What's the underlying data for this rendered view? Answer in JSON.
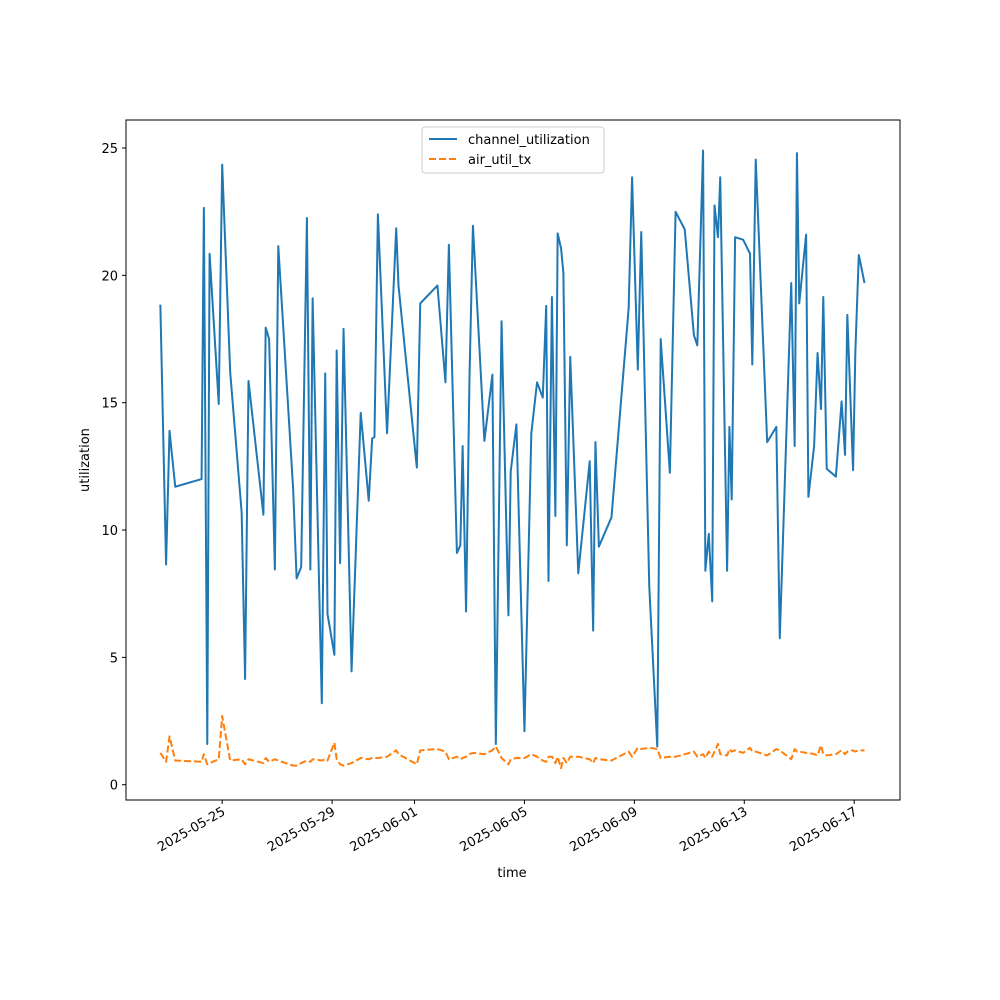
{
  "chart_data": {
    "type": "line",
    "xlabel": "time",
    "ylabel": "utilization",
    "x": [
      "2025-05-22T18:00",
      "2025-05-22T23:00",
      "2025-05-23T02:00",
      "2025-05-23T07:00",
      "2025-05-24T06:00",
      "2025-05-24T08:00",
      "2025-05-24T11:00",
      "2025-05-24T13:00",
      "2025-05-24T21:00",
      "2025-05-25T00:00",
      "2025-05-25T07:00",
      "2025-05-25T17:00",
      "2025-05-25T20:00",
      "2025-05-25T23:00",
      "2025-05-26T12:00",
      "2025-05-26T14:00",
      "2025-05-26T17:00",
      "2025-05-26T22:00",
      "2025-05-27T01:00",
      "2025-05-27T14:00",
      "2025-05-27T17:00",
      "2025-05-27T21:00",
      "2025-05-28T02:00",
      "2025-05-28T05:00",
      "2025-05-28T07:00",
      "2025-05-28T15:00",
      "2025-05-28T18:00",
      "2025-05-28T20:00",
      "2025-05-29T02:00",
      "2025-05-29T04:00",
      "2025-05-29T07:00",
      "2025-05-29T10:00",
      "2025-05-29T17:00",
      "2025-05-30T01:00",
      "2025-05-30T08:00",
      "2025-05-30T11:00",
      "2025-05-30T13:00",
      "2025-05-30T16:00",
      "2025-05-31T00:00",
      "2025-05-31T08:00",
      "2025-05-31T10:00",
      "2025-06-01T02:00",
      "2025-06-01T05:00",
      "2025-06-01T20:00",
      "2025-06-02T03:00",
      "2025-06-02T06:00",
      "2025-06-02T13:00",
      "2025-06-02T16:00",
      "2025-06-02T18:00",
      "2025-06-02T21:00",
      "2025-06-03T00:00",
      "2025-06-03T03:00",
      "2025-06-03T13:00",
      "2025-06-03T20:00",
      "2025-06-03T23:00",
      "2025-06-04T04:00",
      "2025-06-04T10:00",
      "2025-06-04T12:00",
      "2025-06-04T17:00",
      "2025-06-05T00:00",
      "2025-06-05T06:00",
      "2025-06-05T11:00",
      "2025-06-05T16:00",
      "2025-06-05T19:00",
      "2025-06-05T21:00",
      "2025-06-06T00:00",
      "2025-06-06T03:00",
      "2025-06-06T05:00",
      "2025-06-06T08:00",
      "2025-06-06T10:00",
      "2025-06-06T13:00",
      "2025-06-06T16:00",
      "2025-06-06T23:00",
      "2025-06-07T09:00",
      "2025-06-07T12:00",
      "2025-06-07T14:00",
      "2025-06-07T17:00",
      "2025-06-08T04:00",
      "2025-06-08T19:00",
      "2025-06-08T22:00",
      "2025-06-09T03:00",
      "2025-06-09T06:00",
      "2025-06-09T13:00",
      "2025-06-09T20:00",
      "2025-06-09T23:00",
      "2025-06-10T07:00",
      "2025-06-10T12:00",
      "2025-06-10T20:00",
      "2025-06-11T04:00",
      "2025-06-11T07:00",
      "2025-06-11T12:00",
      "2025-06-11T14:00",
      "2025-06-11T17:00",
      "2025-06-11T20:00",
      "2025-06-11T22:00",
      "2025-06-12T01:00",
      "2025-06-12T03:00",
      "2025-06-12T09:00",
      "2025-06-12T11:00",
      "2025-06-12T13:00",
      "2025-06-12T16:00",
      "2025-06-12T23:00",
      "2025-06-13T05:00",
      "2025-06-13T07:00",
      "2025-06-13T10:00",
      "2025-06-13T20:00",
      "2025-06-14T04:00",
      "2025-06-14T07:00",
      "2025-06-14T17:00",
      "2025-06-14T20:00",
      "2025-06-14T22:00",
      "2025-06-15T00:00",
      "2025-06-15T06:00",
      "2025-06-15T08:00",
      "2025-06-15T13:00",
      "2025-06-15T16:00",
      "2025-06-15T19:00",
      "2025-06-15T21:00",
      "2025-06-16T00:00",
      "2025-06-16T08:00",
      "2025-06-16T13:00",
      "2025-06-16T16:00",
      "2025-06-16T18:00",
      "2025-06-16T23:00",
      "2025-06-17T01:00",
      "2025-06-17T04:00",
      "2025-06-17T09:00"
    ],
    "series": [
      {
        "name": "channel_utilization",
        "color": "#1f77b4",
        "dash": false,
        "values": [
          18.85,
          8.65,
          13.9,
          11.7,
          12.0,
          22.65,
          1.6,
          20.85,
          14.95,
          24.35,
          16.2,
          10.7,
          4.15,
          15.85,
          10.6,
          17.95,
          17.5,
          8.45,
          21.15,
          11.6,
          8.1,
          8.55,
          22.25,
          8.45,
          19.1,
          3.2,
          16.15,
          6.7,
          5.1,
          17.05,
          8.7,
          17.9,
          4.45,
          14.6,
          11.15,
          13.6,
          13.65,
          22.4,
          13.8,
          21.85,
          19.6,
          12.45,
          18.9,
          19.6,
          15.8,
          21.2,
          9.1,
          9.4,
          13.3,
          6.8,
          16.0,
          21.95,
          13.5,
          16.1,
          1.6,
          18.2,
          6.65,
          12.3,
          14.15,
          2.1,
          13.8,
          15.8,
          15.2,
          18.8,
          8.0,
          19.15,
          10.55,
          21.65,
          21.05,
          20.1,
          9.4,
          16.8,
          8.3,
          12.7,
          6.05,
          13.45,
          9.35,
          10.5,
          18.7,
          23.85,
          16.3,
          21.7,
          7.8,
          1.5,
          17.5,
          12.25,
          22.5,
          21.8,
          17.65,
          17.25,
          24.9,
          8.4,
          9.85,
          7.2,
          22.75,
          21.5,
          23.85,
          8.4,
          14.05,
          11.2,
          21.5,
          21.4,
          20.85,
          16.5,
          24.55,
          13.45,
          14.05,
          5.75,
          19.7,
          13.3,
          24.8,
          18.9,
          21.6,
          11.3,
          13.3,
          16.95,
          14.75,
          19.15,
          12.4,
          12.1,
          15.05,
          12.95,
          18.45,
          12.35,
          17.0,
          20.8,
          19.7
        ]
      },
      {
        "name": "air_util_tx",
        "color": "#ff7f0e",
        "dash": true,
        "values": [
          1.25,
          0.9,
          1.9,
          0.95,
          0.9,
          1.2,
          0.8,
          0.85,
          1.0,
          2.7,
          0.95,
          1.0,
          0.8,
          1.0,
          0.85,
          1.05,
          0.9,
          1.0,
          0.95,
          0.75,
          0.75,
          0.85,
          0.95,
          0.9,
          1.0,
          0.95,
          1.0,
          0.95,
          1.65,
          1.0,
          0.8,
          0.75,
          0.85,
          1.05,
          1.0,
          1.05,
          1.05,
          1.05,
          1.1,
          1.35,
          1.2,
          0.8,
          1.35,
          1.4,
          1.3,
          1.0,
          1.1,
          1.0,
          1.05,
          1.1,
          1.2,
          1.25,
          1.2,
          1.35,
          1.5,
          1.05,
          0.8,
          1.0,
          1.05,
          1.05,
          1.2,
          1.1,
          0.95,
          0.9,
          1.1,
          1.1,
          0.85,
          1.1,
          0.65,
          1.05,
          0.85,
          1.1,
          1.1,
          1.0,
          0.85,
          1.05,
          1.0,
          0.95,
          1.3,
          1.1,
          1.45,
          1.4,
          1.45,
          1.4,
          1.05,
          1.1,
          1.1,
          1.2,
          1.3,
          1.1,
          1.2,
          1.05,
          1.3,
          1.1,
          1.3,
          1.6,
          1.2,
          1.15,
          1.4,
          1.3,
          1.35,
          1.25,
          1.45,
          1.3,
          1.3,
          1.15,
          1.4,
          1.35,
          1.0,
          1.4,
          1.3,
          1.3,
          1.25,
          1.25,
          1.2,
          1.15,
          1.55,
          1.2,
          1.15,
          1.2,
          1.35,
          1.2,
          1.3,
          1.35,
          1.3,
          1.35,
          1.35
        ]
      }
    ],
    "xlim": [
      "2025-05-21T12:00",
      "2025-06-18T16:00"
    ],
    "xticks": [
      "2025-05-25",
      "2025-05-29",
      "2025-06-01",
      "2025-06-05",
      "2025-06-09",
      "2025-06-13",
      "2025-06-17"
    ],
    "ylim": [
      -0.6,
      26.1
    ],
    "yticks": [
      0,
      5,
      10,
      15,
      20,
      25
    ],
    "grid": false,
    "legend": "upper center"
  }
}
